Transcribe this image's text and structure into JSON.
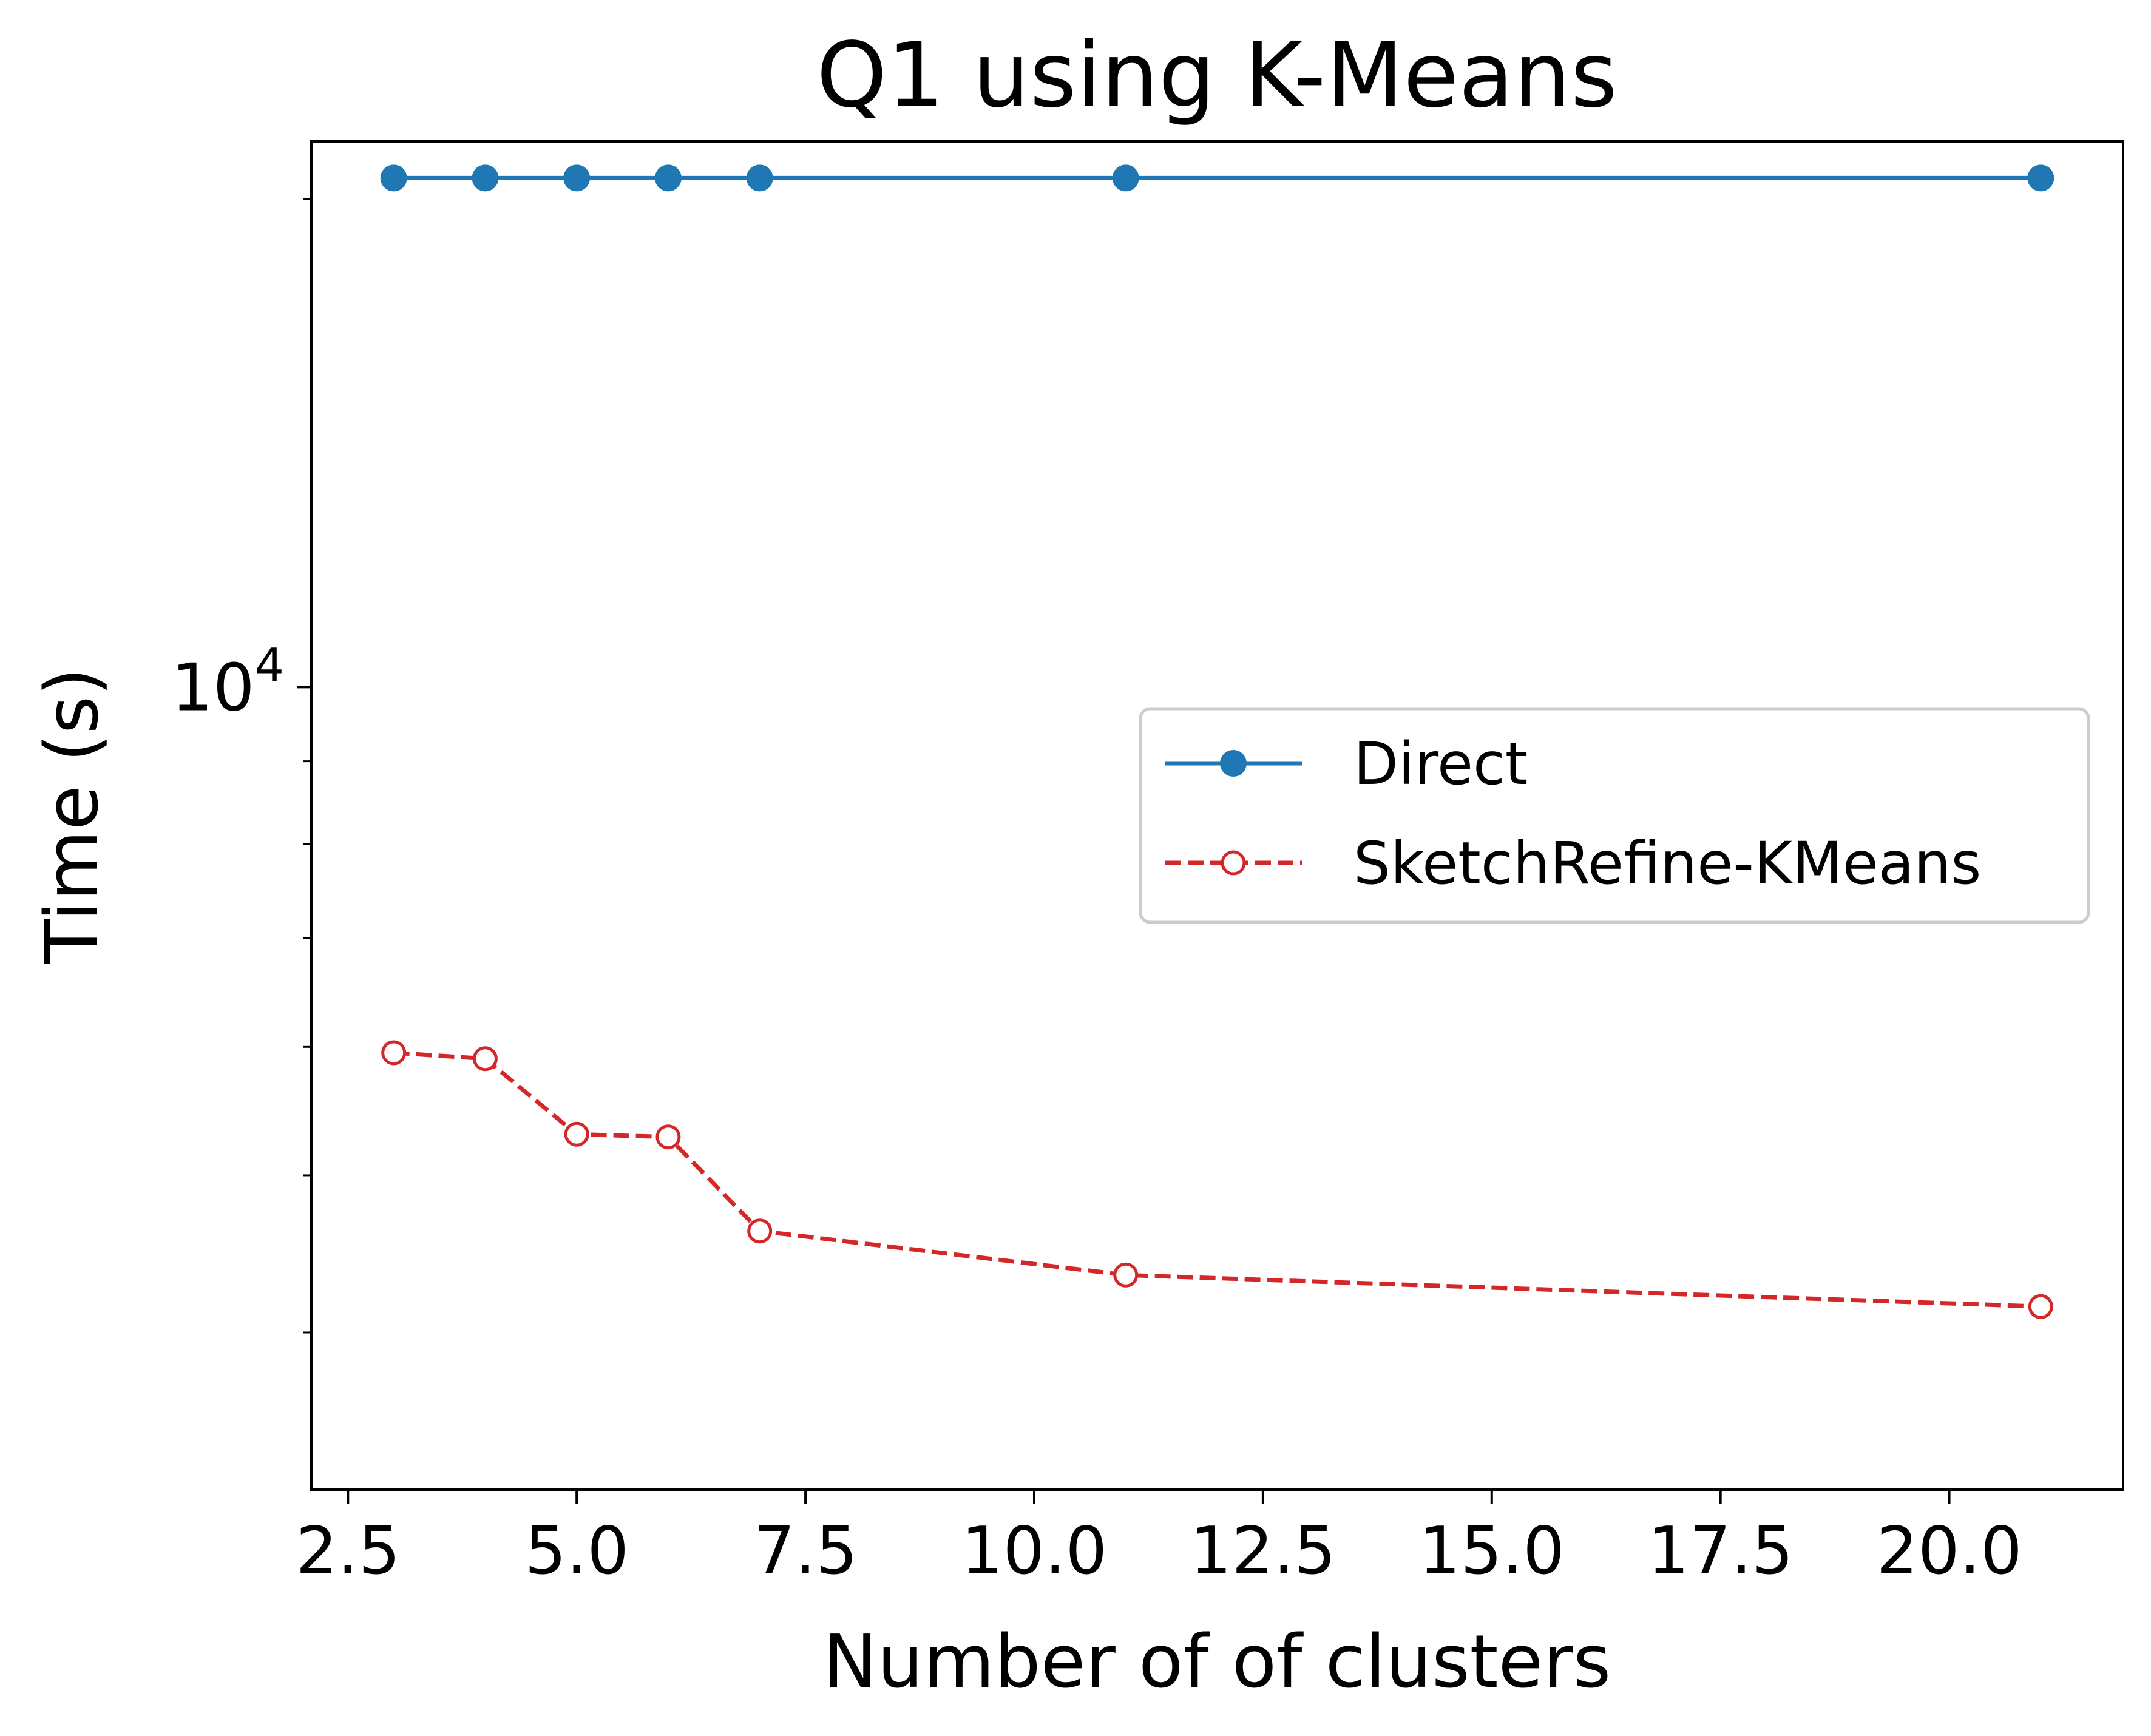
{
  "chart_data": {
    "type": "line",
    "title": "Q1 using K-Means",
    "xlabel": "Number of of clusters",
    "ylabel": "Time (s)",
    "xlim": [
      2.1,
      21.9
    ],
    "ylim": [
      3200,
      21700
    ],
    "yscale": "log",
    "x_ticks": [
      2.5,
      5.0,
      7.5,
      10.0,
      12.5,
      15.0,
      17.5,
      20.0
    ],
    "x_tick_labels": [
      "2.5",
      "5.0",
      "7.5",
      "10.0",
      "12.5",
      "15.0",
      "17.5",
      "20.0"
    ],
    "y_major_ticks": [
      10000
    ],
    "y_major_tick_labels": [
      {
        "base": "10",
        "exp": "4"
      }
    ],
    "y_minor_ticks": [
      4000,
      5000,
      6000,
      7000,
      8000,
      9000,
      20000
    ],
    "grid": false,
    "legend_position": "center-right",
    "series": [
      {
        "name": "Direct",
        "color": "#1f77b4",
        "line_style": "solid",
        "marker": "filled-circle",
        "x": [
          3,
          4,
          5,
          6,
          7,
          11,
          21
        ],
        "y": [
          20600,
          20600,
          20600,
          20600,
          20600,
          20600,
          20600
        ]
      },
      {
        "name": "SketchRefine-KMeans",
        "color": "#d62728",
        "line_style": "dashed",
        "marker": "open-circle",
        "x": [
          3,
          4,
          5,
          6,
          7,
          11,
          21
        ],
        "y": [
          5950,
          5900,
          5300,
          5280,
          4620,
          4340,
          4150
        ]
      }
    ]
  }
}
